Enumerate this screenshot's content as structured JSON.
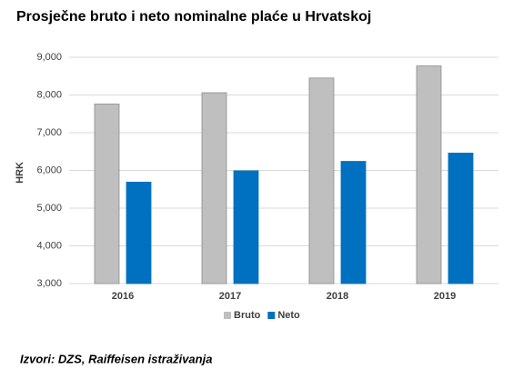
{
  "chart_data": {
    "type": "bar",
    "title": "Prosječne bruto i neto nominalne plaće u Hrvatskoj",
    "y_label": "HRK",
    "source": "Izvori: DZS, Raiffeisen istraživanja",
    "categories": [
      "2016",
      "2017",
      "2018",
      "2019"
    ],
    "series": [
      {
        "name": "Bruto",
        "color": "#bfbfbf",
        "values": [
          7760,
          8060,
          8450,
          8770
        ]
      },
      {
        "name": "Neto",
        "color": "#0070c0",
        "values": [
          5690,
          5990,
          6240,
          6460
        ]
      }
    ],
    "ylim": [
      3000,
      9000
    ],
    "yticks": [
      {
        "value": 3000,
        "label": "3,000"
      },
      {
        "value": 4000,
        "label": "4,000"
      },
      {
        "value": 5000,
        "label": "5,000"
      },
      {
        "value": 6000,
        "label": "6,000"
      },
      {
        "value": 7000,
        "label": "7,000"
      },
      {
        "value": 8000,
        "label": "8,000"
      },
      {
        "value": 9000,
        "label": "9,000"
      }
    ],
    "grid": true,
    "legend": "bottom"
  }
}
